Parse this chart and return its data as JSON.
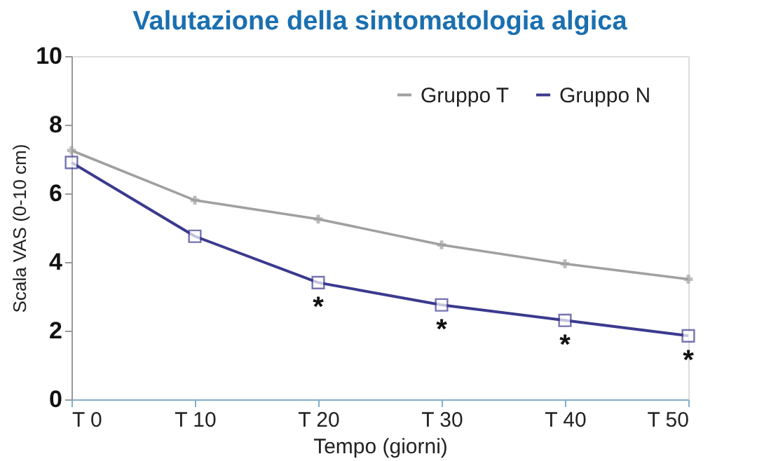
{
  "chart_data": {
    "type": "line",
    "title": "Valutazione della sintomatologia algica",
    "xlabel": "Tempo (giorni)",
    "ylabel": "Scala VAS (0-10 cm)",
    "categories": [
      "T 0",
      "T 10",
      "T 20",
      "T 30",
      "T 40",
      "T 50"
    ],
    "series": [
      {
        "name": "Gruppo T",
        "color": "#a0a0a0",
        "marker": "cross",
        "values": [
          7.25,
          5.8,
          5.25,
          4.5,
          3.95,
          3.5
        ]
      },
      {
        "name": "Gruppo N",
        "color": "#3b3a8f",
        "marker": "square",
        "values": [
          6.9,
          4.75,
          3.4,
          2.75,
          2.3,
          1.85
        ]
      }
    ],
    "annotations": [
      {
        "text": "*",
        "x": "T 20",
        "y": 3.4
      },
      {
        "text": "*",
        "x": "T 30",
        "y": 2.75
      },
      {
        "text": "*",
        "x": "T 40",
        "y": 2.3
      },
      {
        "text": "*",
        "x": "T 50",
        "y": 1.85
      }
    ],
    "ylim": [
      0,
      10
    ],
    "yticks": [
      0,
      2,
      4,
      6,
      8,
      10
    ],
    "grid": false,
    "legend": "top right"
  }
}
